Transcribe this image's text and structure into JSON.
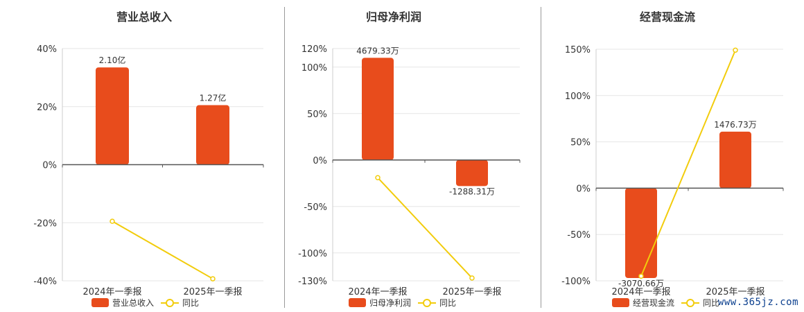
{
  "colors": {
    "bar": "#e84c1c",
    "line": "#f2cc0c",
    "axis": "#555555",
    "grid": "#e6e6e6",
    "text": "#333333"
  },
  "watermark": "www.365jz.com",
  "chart_data": [
    {
      "type": "bar",
      "title": "营业总收入",
      "categories": [
        "2024年一季报",
        "2025年一季报"
      ],
      "series": [
        {
          "name": "营业总收入",
          "type": "bar",
          "values": [
            33.5,
            20.5
          ],
          "labels": [
            "2.10亿",
            "1.27亿"
          ]
        },
        {
          "name": "同比",
          "type": "line",
          "values": [
            -19.5,
            -39.3
          ]
        }
      ],
      "ylim": [
        -40,
        40
      ],
      "yticks": [
        40,
        20,
        0,
        -20,
        -40
      ],
      "ytick_labels": [
        "40%",
        "20%",
        "0%",
        "-20%",
        "-40%"
      ],
      "legend": "bottom-center",
      "grid": true
    },
    {
      "type": "bar",
      "title": "归母净利润",
      "categories": [
        "2024年一季报",
        "2025年一季报"
      ],
      "series": [
        {
          "name": "归母净利润",
          "type": "bar",
          "values": [
            110,
            -28
          ],
          "labels": [
            "4679.33万",
            "-1288.31万"
          ]
        },
        {
          "name": "同比",
          "type": "line",
          "values": [
            -19,
            -127
          ]
        }
      ],
      "ylim": [
        -130,
        120
      ],
      "yticks": [
        120,
        100,
        50,
        0,
        -50,
        -100,
        -130
      ],
      "ytick_labels": [
        "120%",
        "100%",
        "50%",
        "0%",
        "-50%",
        "-100%",
        "-130%"
      ],
      "legend": "bottom-center",
      "grid": true
    },
    {
      "type": "bar",
      "title": "经营现金流",
      "categories": [
        "2024年一季报",
        "2025年一季报"
      ],
      "series": [
        {
          "name": "经营现金流",
          "type": "bar",
          "values": [
            -97,
            61
          ],
          "labels": [
            "-3070.66万",
            "1476.73万"
          ]
        },
        {
          "name": "同比",
          "type": "line",
          "values": [
            -95,
            149
          ]
        }
      ],
      "ylim": [
        -100,
        150
      ],
      "yticks": [
        150,
        100,
        50,
        0,
        -50,
        -100
      ],
      "ytick_labels": [
        "150%",
        "100%",
        "50%",
        "0%",
        "-50%",
        "-100%"
      ],
      "legend": "bottom-center",
      "grid": true
    }
  ]
}
